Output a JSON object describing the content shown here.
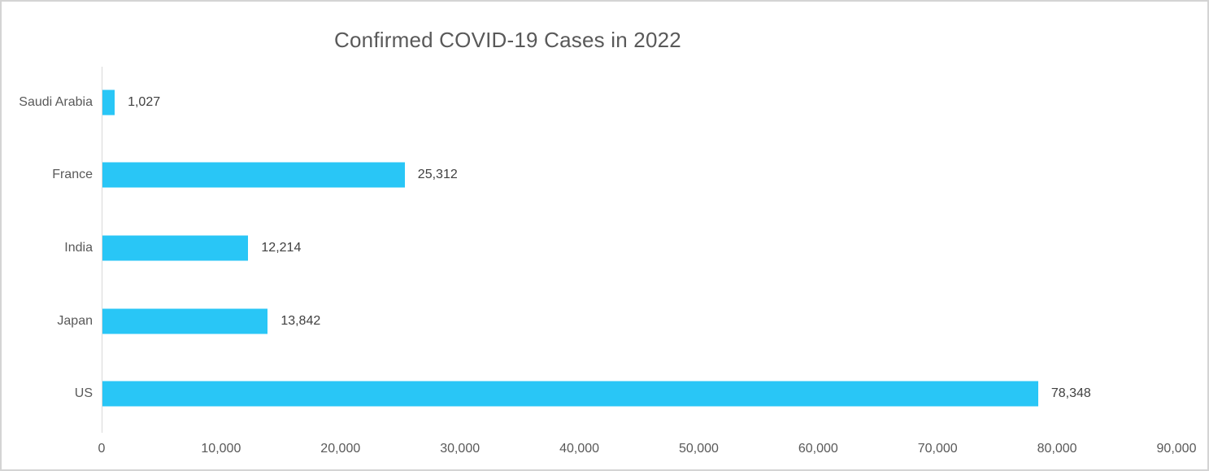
{
  "chart_data": {
    "type": "bar",
    "orientation": "horizontal",
    "title": "Confirmed COVID-19 Cases in 2022",
    "categories": [
      "Saudi Arabia",
      "France",
      "India",
      "Japan",
      "US"
    ],
    "values": [
      1027,
      25312,
      12214,
      13842,
      78348
    ],
    "value_labels": [
      "1,027",
      "25,312",
      "12,214",
      "13,842",
      "78,348"
    ],
    "x_tick_values": [
      0,
      10000,
      20000,
      30000,
      40000,
      50000,
      60000,
      70000,
      80000,
      90000
    ],
    "x_tick_labels": [
      "0",
      "10,000",
      "20,000",
      "30,000",
      "40,000",
      "50,000",
      "60,000",
      "70,000",
      "80,000",
      "90,000"
    ],
    "xlim": [
      0,
      90000
    ],
    "grid": false,
    "legend": false,
    "colors": {
      "bar": "#29c6f6",
      "title_text": "#595959",
      "category_text": "#595959",
      "value_text": "#404040",
      "axis_text": "#595959",
      "axis_line": "#d9d9d9",
      "frame_border": "#d4d4d4",
      "background": "#ffffff"
    }
  }
}
